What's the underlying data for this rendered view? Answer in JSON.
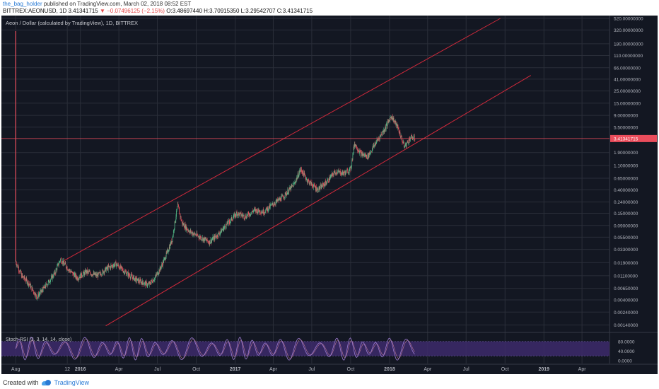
{
  "header": {
    "user": "the_bag_holder",
    "published": " published on TradingView.com, March 02, 2018 08:52 EST",
    "symbol_line": "BITTREX:AEONUSD, 1D 3.41341715",
    "change": "▼ −0.07496125 (−2.15%)",
    "ohlc": "O:3.48697440 H:3.70915350 L:3.29542707 C:3.41341715"
  },
  "footer": {
    "created": "Created with",
    "brand": "TradingView"
  },
  "colors": {
    "bg": "#131722",
    "grid": "#2a2e39",
    "up": "#53b987",
    "down": "#eb4d5c",
    "channel": "#d0293b",
    "rsi": "#9c7bd0",
    "rsi_band": "#3d2a6b"
  },
  "chart_data": [
    {
      "type": "line",
      "title": "Aeon / Dollar (calculated by TradingView), 1D, BITTREX",
      "scale": "log",
      "last_price_label": "3.41341715",
      "y_ticks": [
        "520.00000000",
        "320.00000000",
        "180.00000000",
        "110.00000000",
        "66.00000000",
        "41.00000000",
        "25.00000000",
        "15.00000000",
        "9.00000000",
        "5.50000000",
        "3.41341715",
        "1.90000000",
        "1.10000000",
        "0.65000000",
        "0.40000000",
        "0.24000000",
        "0.15000000",
        "0.09000000",
        "0.05500000",
        "0.03300000",
        "0.01900000",
        "0.01100000",
        "0.00650000",
        "0.00400000",
        "0.00240000",
        "0.00140000"
      ],
      "x_ticks": [
        "Aug",
        "12",
        "2016",
        "Apr",
        "Jul",
        "Oct",
        "2017",
        "Apr",
        "Jul",
        "Oct",
        "2018",
        "Apr",
        "Jul",
        "Oct",
        "2019",
        "Apr"
      ],
      "price_path": [
        [
          "2015-08-01",
          0.02
        ],
        [
          "2015-08-15",
          0.011
        ],
        [
          "2015-09-01",
          0.008
        ],
        [
          "2015-09-20",
          0.0045
        ],
        [
          "2015-10-10",
          0.007
        ],
        [
          "2015-11-01",
          0.012
        ],
        [
          "2015-11-15",
          0.022
        ],
        [
          "2015-12-05",
          0.014
        ],
        [
          "2015-12-25",
          0.01
        ],
        [
          "2016-01-15",
          0.013
        ],
        [
          "2016-02-10",
          0.011
        ],
        [
          "2016-03-05",
          0.015
        ],
        [
          "2016-03-25",
          0.018
        ],
        [
          "2016-04-20",
          0.012
        ],
        [
          "2016-05-15",
          0.009
        ],
        [
          "2016-06-10",
          0.0075
        ],
        [
          "2016-06-25",
          0.01
        ],
        [
          "2016-07-10",
          0.016
        ],
        [
          "2016-07-25",
          0.03
        ],
        [
          "2016-08-05",
          0.05
        ],
        [
          "2016-08-18",
          0.21
        ],
        [
          "2016-08-28",
          0.1
        ],
        [
          "2016-09-15",
          0.07
        ],
        [
          "2016-10-10",
          0.055
        ],
        [
          "2016-11-01",
          0.045
        ],
        [
          "2016-11-20",
          0.06
        ],
        [
          "2016-12-10",
          0.09
        ],
        [
          "2017-01-05",
          0.15
        ],
        [
          "2017-01-25",
          0.13
        ],
        [
          "2017-02-15",
          0.17
        ],
        [
          "2017-03-10",
          0.16
        ],
        [
          "2017-04-01",
          0.22
        ],
        [
          "2017-04-25",
          0.3
        ],
        [
          "2017-05-20",
          0.5
        ],
        [
          "2017-06-05",
          0.95
        ],
        [
          "2017-06-20",
          0.6
        ],
        [
          "2017-07-15",
          0.4
        ],
        [
          "2017-08-05",
          0.55
        ],
        [
          "2017-08-25",
          0.85
        ],
        [
          "2017-09-15",
          0.8
        ],
        [
          "2017-10-01",
          0.95
        ],
        [
          "2017-10-10",
          2.8
        ],
        [
          "2017-10-25",
          1.8
        ],
        [
          "2017-11-10",
          1.6
        ],
        [
          "2017-12-01",
          3.0
        ],
        [
          "2017-12-20",
          5.0
        ],
        [
          "2018-01-05",
          8.8
        ],
        [
          "2018-01-20",
          5.5
        ],
        [
          "2018-02-05",
          2.4
        ],
        [
          "2018-02-20",
          3.6
        ],
        [
          "2018-03-02",
          3.41
        ]
      ],
      "channel_upper": [
        [
          "2015-11-20",
          0.02
        ],
        [
          "2018-09-20",
          520
        ]
      ],
      "channel_lower": [
        [
          "2016-03-01",
          0.00135
        ],
        [
          "2018-12-01",
          48
        ]
      ]
    },
    {
      "type": "line",
      "title": "Stoch RSI (3, 3, 14, 14, close)",
      "y_ticks": [
        "80.0000",
        "40.0000",
        "0.0000"
      ],
      "band": [
        20,
        80
      ]
    }
  ]
}
